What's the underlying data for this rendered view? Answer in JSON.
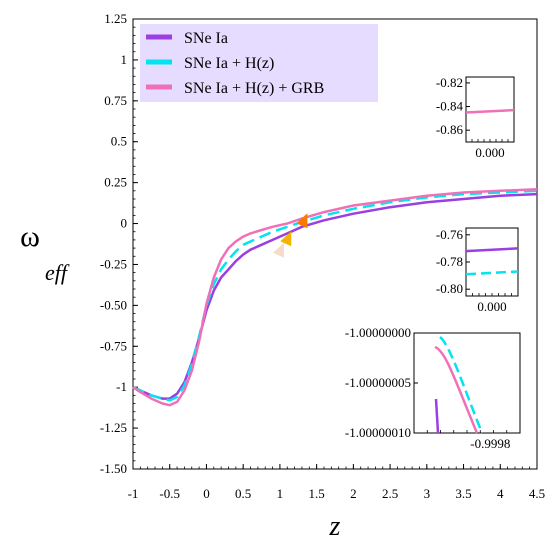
{
  "chart_data": {
    "type": "line",
    "title": "",
    "xlabel": "z",
    "ylabel": "ω",
    "ylabel_subscript": "eff",
    "xlim": [
      -1,
      4.5
    ],
    "ylim": [
      -1.5,
      1.25
    ],
    "x_ticks": [
      "-1",
      "-0.5",
      "0",
      "0.5",
      "1",
      "1.5",
      "2",
      "2.5",
      "3",
      "3.5",
      "4",
      "4.5"
    ],
    "y_ticks": [
      "1.25",
      "1",
      "0.75",
      "0.5",
      "0.25",
      "0",
      "-0.25",
      "-0.50",
      "-0.75",
      "-1",
      "-1.25",
      "-1.50"
    ],
    "grid": false,
    "legend_position": "top-left",
    "legend_background": "#e6dcff",
    "series": [
      {
        "name": "SNe Ia",
        "color": "#9b3fe0",
        "dash": "solid",
        "x": [
          -1,
          -0.9,
          -0.75,
          -0.6,
          -0.5,
          -0.4,
          -0.3,
          -0.2,
          -0.1,
          0,
          0.1,
          0.2,
          0.3,
          0.4,
          0.5,
          0.6,
          0.75,
          0.9,
          1.1,
          1.3,
          1.6,
          2,
          2.5,
          3,
          3.5,
          4,
          4.5
        ],
        "y": [
          -1,
          -1.02,
          -1.05,
          -1.07,
          -1.07,
          -1.04,
          -0.97,
          -0.85,
          -0.7,
          -0.53,
          -0.41,
          -0.33,
          -0.28,
          -0.23,
          -0.19,
          -0.16,
          -0.13,
          -0.1,
          -0.06,
          -0.02,
          0.02,
          0.06,
          0.1,
          0.13,
          0.15,
          0.17,
          0.18
        ],
        "marker": {
          "x": 1.0,
          "y": -0.16,
          "color": "#f5dcc8"
        }
      },
      {
        "name": "SNe Ia + H(z)",
        "color": "#00e5f0",
        "dash": "dashed",
        "x": [
          -1,
          -0.9,
          -0.75,
          -0.6,
          -0.5,
          -0.4,
          -0.3,
          -0.2,
          -0.1,
          0,
          0.1,
          0.2,
          0.3,
          0.4,
          0.5,
          0.6,
          0.75,
          0.9,
          1.1,
          1.3,
          1.6,
          2,
          2.5,
          3,
          3.5,
          4,
          4.5
        ],
        "y": [
          -1,
          -1.02,
          -1.05,
          -1.07,
          -1.08,
          -1.06,
          -0.99,
          -0.86,
          -0.69,
          -0.5,
          -0.37,
          -0.28,
          -0.22,
          -0.17,
          -0.13,
          -0.11,
          -0.08,
          -0.05,
          -0.02,
          0.01,
          0.05,
          0.09,
          0.13,
          0.16,
          0.18,
          0.19,
          0.2
        ],
        "marker": {
          "x": 1.1,
          "y": -0.09,
          "color": "#f2b400"
        }
      },
      {
        "name": "SNe Ia + H(z) + GRB",
        "color": "#f070b8",
        "dash": "solid",
        "x": [
          -1,
          -0.9,
          -0.75,
          -0.6,
          -0.5,
          -0.4,
          -0.3,
          -0.2,
          -0.1,
          0,
          0.1,
          0.2,
          0.3,
          0.4,
          0.5,
          0.6,
          0.75,
          0.9,
          1.1,
          1.3,
          1.6,
          2,
          2.5,
          3,
          3.5,
          4,
          4.5
        ],
        "y": [
          -1,
          -1.03,
          -1.07,
          -1.1,
          -1.11,
          -1.09,
          -1.02,
          -0.9,
          -0.72,
          -0.49,
          -0.33,
          -0.22,
          -0.15,
          -0.11,
          -0.08,
          -0.06,
          -0.04,
          -0.02,
          0,
          0.03,
          0.07,
          0.11,
          0.14,
          0.17,
          0.19,
          0.2,
          0.21
        ],
        "marker": {
          "x": 1.32,
          "y": 0.02,
          "color": "#f57c00"
        }
      }
    ],
    "insets": [
      {
        "y_ticks": [
          "-0.82",
          "-0.84",
          "-0.86"
        ],
        "x_ticks": [
          "0.000"
        ],
        "ylim": [
          -0.87,
          -0.815
        ],
        "lines": [
          {
            "color": "#f070b8",
            "dash": "solid",
            "y_start": -0.845,
            "y_end": -0.843
          }
        ]
      },
      {
        "y_ticks": [
          "-0.76",
          "-0.78",
          "-0.80"
        ],
        "x_ticks": [
          "0.000"
        ],
        "ylim": [
          -0.805,
          -0.755
        ],
        "lines": [
          {
            "color": "#9b3fe0",
            "dash": "solid",
            "y_start": -0.772,
            "y_end": -0.77
          },
          {
            "color": "#00e5f0",
            "dash": "dashed",
            "y_start": -0.789,
            "y_end": -0.787
          }
        ]
      },
      {
        "y_ticks": [
          "-1.00000000",
          "-1.00000005",
          "-1.00000010"
        ],
        "x_ticks": [
          "-0.9998"
        ],
        "ylim": [
          -1.0000001,
          -1.0
        ]
      }
    ]
  }
}
